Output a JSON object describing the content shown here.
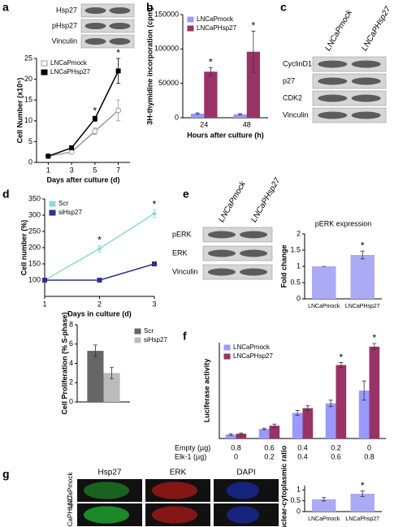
{
  "panel_labels": [
    "a",
    "b",
    "c",
    "d",
    "e",
    "f",
    "g"
  ],
  "blots": [
    {
      "rows": [
        "Hsp27",
        "pHsp27",
        "Vinculin"
      ]
    },
    {
      "columns": [
        "LNCaPmock",
        "LNCaPHsp27"
      ],
      "rows": [
        "CyclinD1",
        "p27",
        "CDK2",
        "Vinculin"
      ]
    },
    {
      "columns": [
        "LNCaPmock",
        "LNCaPHsp27"
      ],
      "rows": [
        "pERK",
        "ERK",
        "Vinculin"
      ]
    }
  ],
  "micrographs": {
    "columns": [
      "Hsp27",
      "ERK",
      "DAPI"
    ],
    "rows": [
      "LNCaPmock",
      "LNCaPHsp27"
    ]
  },
  "chart_data": [
    {
      "type": "line",
      "ylabel": "Cell Number (x10⁵)",
      "xlabel": "Days after culture (d)",
      "x": [
        1,
        3,
        5,
        7
      ],
      "xlim": [
        0,
        8
      ],
      "xticks": [
        1,
        3,
        5,
        7
      ],
      "ylim": [
        0,
        25
      ],
      "yticks": [
        0,
        5,
        10,
        15,
        20,
        25
      ],
      "legend": "upper left",
      "series": [
        {
          "name": "LNCaPmock",
          "color": "#999999",
          "marker": "open-circle",
          "values": [
            1.5,
            2.5,
            7.5,
            12.5
          ],
          "errors": [
            0.2,
            0.3,
            0.8,
            2.5
          ]
        },
        {
          "name": "LNCaPHsp27",
          "color": "#000000",
          "marker": "square",
          "values": [
            1.5,
            3.5,
            10.5,
            22
          ],
          "errors": [
            0.2,
            0.3,
            0.6,
            3
          ]
        }
      ],
      "annotations": [
        {
          "text": "*",
          "x": 5
        },
        {
          "text": "*",
          "x": 7
        }
      ]
    },
    {
      "type": "bar",
      "ylabel": "3H-thymidine incorporation (cpm)",
      "xlabel": "Hours after culture (h)",
      "categories": [
        "24",
        "48"
      ],
      "ylim": [
        0,
        150000
      ],
      "yticks": [
        0,
        50000,
        100000,
        150000
      ],
      "legend": "upper left",
      "series": [
        {
          "name": "LNCaPmock",
          "color": "#9999ff",
          "values": [
            6000,
            5000
          ],
          "errors": [
            1000,
            1000
          ]
        },
        {
          "name": "LNCaPHsp27",
          "color": "#993366",
          "values": [
            67000,
            96000
          ],
          "errors": [
            6000,
            30000
          ]
        }
      ],
      "annotations": [
        {
          "text": "*",
          "index": 0
        },
        {
          "text": "*",
          "index": 1
        }
      ]
    },
    {
      "type": "line",
      "ylabel": "Cell number (%)",
      "xlabel": "Days in culture (d)",
      "x": [
        1,
        2,
        3
      ],
      "xlim": [
        1,
        3
      ],
      "xticks": [
        1,
        2,
        3
      ],
      "ylim": [
        50,
        350
      ],
      "yticks": [
        100,
        150,
        200,
        250,
        300,
        350
      ],
      "legend": "upper left",
      "series": [
        {
          "name": "Scr",
          "color": "#8fd8d8",
          "marker": "diamond",
          "values": [
            100,
            197,
            305
          ],
          "errors": [
            0,
            10,
            12
          ]
        },
        {
          "name": "siHsp27",
          "color": "#2e3192",
          "marker": "square",
          "values": [
            100,
            100,
            150
          ],
          "errors": [
            0,
            5,
            6
          ]
        }
      ],
      "annotations": [
        {
          "text": "*",
          "x": 2
        },
        {
          "text": "*",
          "x": 3
        }
      ]
    },
    {
      "type": "bar",
      "ylabel": "Cell Proliferation (% S-phase)",
      "categories": [
        null
      ],
      "ylim": [
        0,
        8
      ],
      "yticks": [
        0,
        2,
        4,
        6,
        8
      ],
      "legend": "right",
      "series": [
        {
          "name": "Scr",
          "color": "#666666",
          "values": [
            5.3
          ],
          "errors": [
            0.6
          ]
        },
        {
          "name": "siHsp27",
          "color": "#bbbbbb",
          "values": [
            3.0
          ],
          "errors": [
            0.6
          ]
        }
      ]
    },
    {
      "type": "bar",
      "title": "pERK expression",
      "ylabel": "Fold change",
      "categories": [
        "LNCaPmock",
        "LNCaPHsp27"
      ],
      "values": [
        1,
        1.35
      ],
      "errors": [
        0,
        0.12
      ],
      "color": "#aaaaf5",
      "ylim": [
        0,
        2
      ],
      "yticks": [
        0,
        0.5,
        1,
        1.5,
        2
      ],
      "annotations": [
        {
          "text": "*",
          "index": 1
        }
      ]
    },
    {
      "type": "bar",
      "ylabel": "Luciferase activity",
      "categories": [
        null,
        null,
        null,
        null,
        null
      ],
      "ylim": [
        0,
        12
      ],
      "legend": "upper left",
      "series": [
        {
          "name": "LNCaPmock",
          "color": "#9999ff",
          "values": [
            0.5,
            1.2,
            3.2,
            4.4,
            6.0
          ],
          "errors": [
            0.1,
            0.1,
            0.3,
            0.4,
            1.2
          ]
        },
        {
          "name": "LNCaPHsp27",
          "color": "#993366",
          "values": [
            0.6,
            1.6,
            3.8,
            9.2,
            11.5
          ],
          "errors": [
            0.1,
            0.2,
            0.3,
            0.3,
            0.4
          ]
        }
      ],
      "x_table": [
        {
          "label": "Empty (µg)",
          "values": [
            0.8,
            0.6,
            0.4,
            0.2,
            0
          ]
        },
        {
          "label": "Elk-1 (µg)",
          "values": [
            0,
            0.2,
            0.4,
            0.6,
            0.8
          ]
        }
      ],
      "annotations": [
        {
          "text": "*",
          "index": 3
        },
        {
          "text": "*",
          "index": 4
        }
      ]
    },
    {
      "type": "bar",
      "ylabel": "ERK nuclear-cytoplasmic ratio",
      "categories": [
        "LNCaPmock",
        "LNCaPhsp27"
      ],
      "values": [
        0.57,
        0.82
      ],
      "errors": [
        0.08,
        0.13
      ],
      "color": "#aaaaf5",
      "ylim": [
        0,
        1.2
      ],
      "yticks": [
        0,
        0.5,
        1
      ],
      "annotations": [
        {
          "text": "*",
          "index": 1
        }
      ]
    }
  ]
}
